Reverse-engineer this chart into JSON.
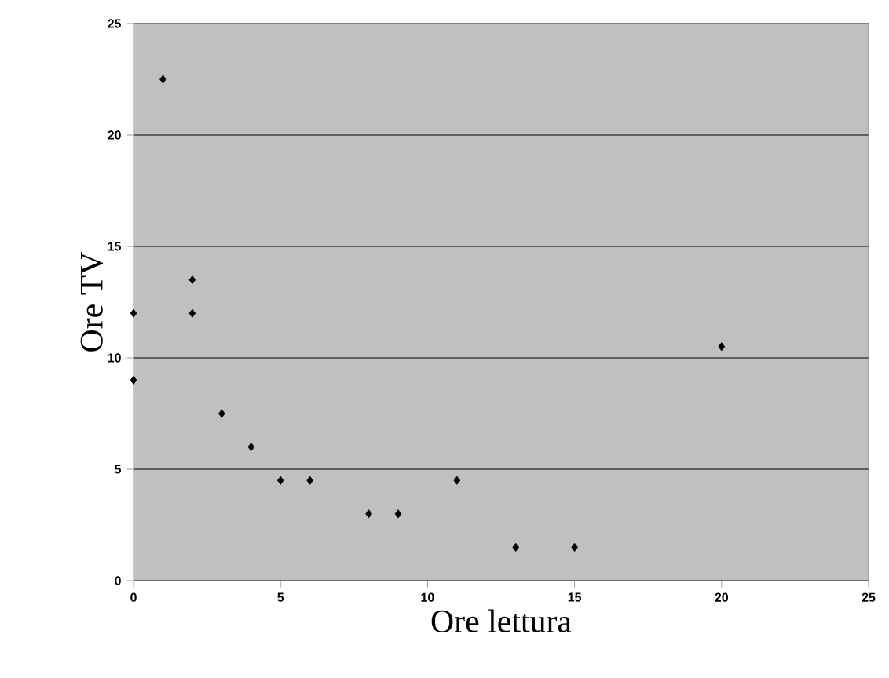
{
  "chart_data": {
    "type": "scatter",
    "xlabel": "Ore lettura",
    "ylabel": "Ore TV",
    "x": [
      0,
      0,
      1,
      2,
      2,
      3,
      4,
      5,
      6,
      8,
      9,
      11,
      13,
      15,
      20
    ],
    "series": [
      {
        "color": "#000000",
        "values": [
          12,
          9,
          22.5,
          13.5,
          12,
          7.5,
          6,
          4.5,
          4.5,
          3,
          3,
          4.5,
          1.5,
          1.5,
          10.5
        ]
      }
    ],
    "xlim": [
      0,
      25
    ],
    "xticks": [
      0,
      5,
      10,
      15,
      20,
      25
    ],
    "ylim": [
      0,
      25
    ],
    "yticks": [
      0,
      5,
      10,
      15,
      20,
      25
    ],
    "grid": "y",
    "marker": "diamond"
  }
}
